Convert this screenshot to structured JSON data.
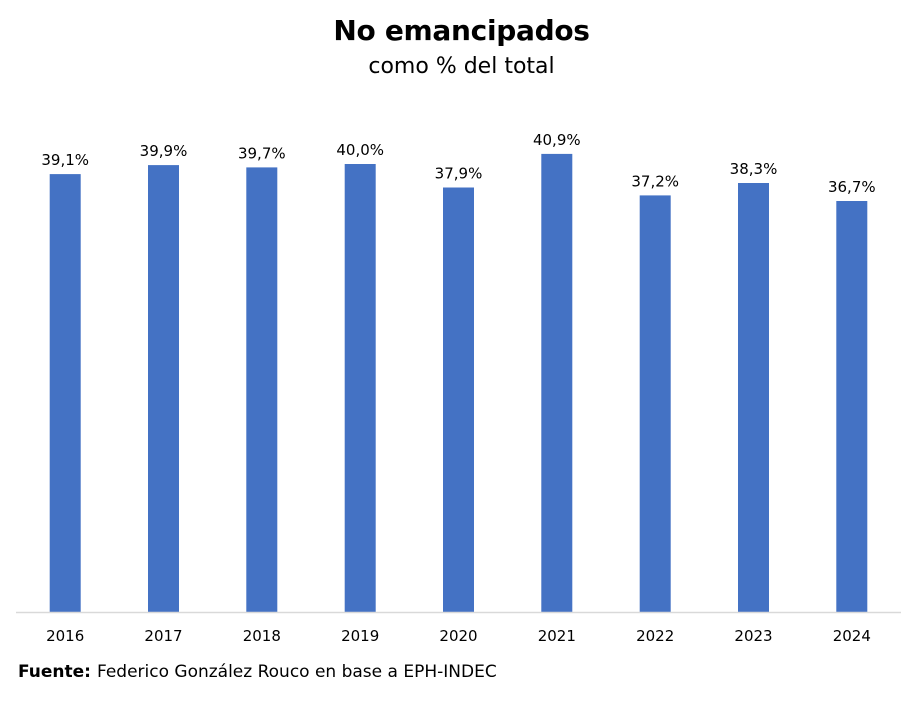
{
  "chart_data": {
    "type": "bar",
    "title": "No emancipados",
    "subtitle": "como % del total",
    "xlabel": "",
    "ylabel": "",
    "categories": [
      "2016",
      "2017",
      "2018",
      "2019",
      "2020",
      "2021",
      "2022",
      "2023",
      "2024"
    ],
    "values": [
      39.1,
      39.9,
      39.7,
      40.0,
      37.9,
      40.9,
      37.2,
      38.3,
      36.7
    ],
    "data_labels": [
      "39,1%",
      "39,9%",
      "39,7%",
      "40,0%",
      "37,9%",
      "40,9%",
      "37,2%",
      "38,3%",
      "36,7%"
    ],
    "ylim": [
      0,
      45
    ],
    "grid": false,
    "y_axis_visible": false,
    "bar_color": "#4472C4",
    "axis_color": "#D9D9D9"
  },
  "source": {
    "label": "Fuente:",
    "text": "Federico González Rouco en base a EPH-INDEC"
  }
}
